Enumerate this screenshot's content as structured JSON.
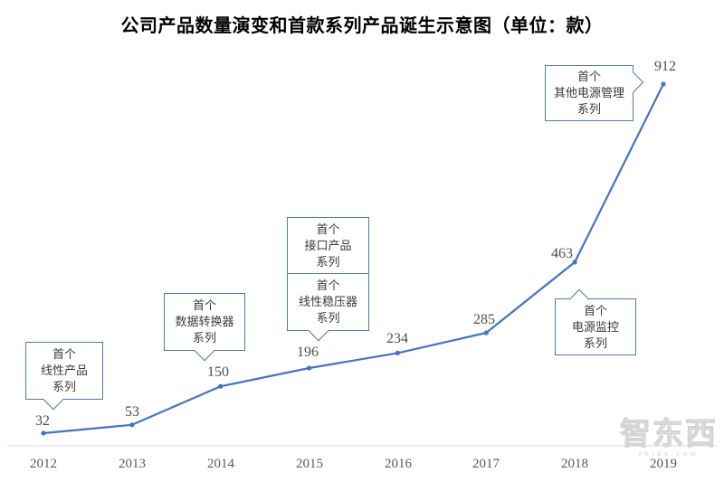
{
  "title": "公司产品数量演变和首款系列产品诞生示意图（单位：款）",
  "chart_data": {
    "type": "line",
    "categories": [
      "2012",
      "2013",
      "2014",
      "2015",
      "2016",
      "2017",
      "2018",
      "2019"
    ],
    "values": [
      32,
      53,
      150,
      196,
      234,
      285,
      463,
      912
    ],
    "series": [
      {
        "name": "公司产品数量",
        "values": [
          32,
          53,
          150,
          196,
          234,
          285,
          463,
          912
        ]
      }
    ],
    "xlabel": "",
    "ylabel": "",
    "ylim": [
      0,
      950
    ],
    "grid": false,
    "legend_position": "none",
    "line_color": "#4472C4",
    "annotations": [
      {
        "text": "首个\n线性产品\n系列",
        "target_year": "2012"
      },
      {
        "text": "首个\n数据转换器\n系列",
        "target_year": "2014"
      },
      {
        "text": "首个\n接口产品\n系列",
        "target_year": "2015"
      },
      {
        "text": "首个\n线性稳压器\n系列",
        "target_year": "2015"
      },
      {
        "text": "首个\n电源监控\n系列",
        "target_year": "2018"
      },
      {
        "text": "首个\n其他电源管理\n系列",
        "target_year": "2019"
      }
    ]
  },
  "watermark": {
    "logo": "智东西",
    "sub": "zhidx.com"
  }
}
